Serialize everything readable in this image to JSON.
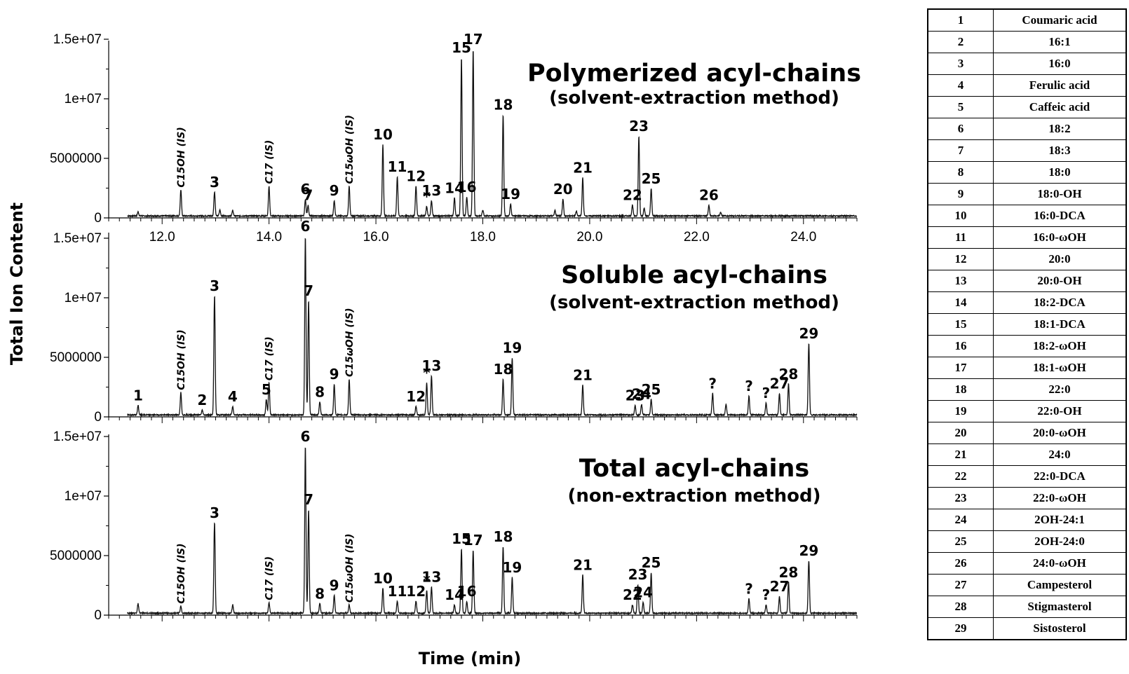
{
  "chart_data": {
    "type": "line",
    "ylabel": "Total Ion Content",
    "xlabel": "Time (min)",
    "xlim": [
      11.0,
      25.0
    ],
    "ylim": [
      0,
      15000000
    ],
    "x_ticks": [
      "12.0",
      "14.0",
      "16.0",
      "18.0",
      "20.0",
      "22.0",
      "24.0"
    ],
    "y_ticks": [
      "0",
      "5000000",
      "1e+07",
      "1.5e+07"
    ],
    "panels": [
      {
        "title": "Polymerized acyl-chains",
        "subtitle": "(solvent-extraction method)",
        "peaks": [
          {
            "x": 11.55,
            "y": 350000
          },
          {
            "x": 12.35,
            "y": 2200000,
            "label": "C15OH (IS)",
            "is": true
          },
          {
            "x": 12.98,
            "y": 2000000,
            "label": "3"
          },
          {
            "x": 13.08,
            "y": 500000
          },
          {
            "x": 13.32,
            "y": 450000
          },
          {
            "x": 14.0,
            "y": 2500000,
            "label": "C17 (IS)",
            "is": true
          },
          {
            "x": 14.68,
            "y": 1400000,
            "label": "6"
          },
          {
            "x": 14.73,
            "y": 900000,
            "label": "7"
          },
          {
            "x": 15.22,
            "y": 1300000,
            "label": "9"
          },
          {
            "x": 15.5,
            "y": 2500000,
            "label": "C15ωOH (IS)",
            "is": true
          },
          {
            "x": 16.13,
            "y": 6000000,
            "label": "10"
          },
          {
            "x": 16.4,
            "y": 3300000,
            "label": "11"
          },
          {
            "x": 16.75,
            "y": 2500000,
            "label": "12"
          },
          {
            "x": 16.95,
            "y": 800000,
            "label": "*"
          },
          {
            "x": 17.04,
            "y": 1300000,
            "label": "13"
          },
          {
            "x": 17.47,
            "y": 1500000,
            "label": "14"
          },
          {
            "x": 17.6,
            "y": 13300000,
            "label": "15"
          },
          {
            "x": 17.7,
            "y": 1600000,
            "label": "16"
          },
          {
            "x": 17.82,
            "y": 14000000,
            "label": "17"
          },
          {
            "x": 18.0,
            "y": 500000
          },
          {
            "x": 18.38,
            "y": 8500000,
            "label": "18"
          },
          {
            "x": 18.52,
            "y": 1000000,
            "label": "19"
          },
          {
            "x": 19.35,
            "y": 450000
          },
          {
            "x": 19.5,
            "y": 1400000,
            "label": "20"
          },
          {
            "x": 19.75,
            "y": 400000
          },
          {
            "x": 19.87,
            "y": 3200000,
            "label": "21"
          },
          {
            "x": 20.8,
            "y": 900000,
            "label": "22"
          },
          {
            "x": 20.92,
            "y": 6700000,
            "label": "23"
          },
          {
            "x": 21.02,
            "y": 700000
          },
          {
            "x": 21.15,
            "y": 2300000,
            "label": "25"
          },
          {
            "x": 22.23,
            "y": 900000,
            "label": "26"
          },
          {
            "x": 22.45,
            "y": 300000
          }
        ]
      },
      {
        "title": "Soluble acyl-chains",
        "subtitle": "(solvent-extraction method)",
        "peaks": [
          {
            "x": 11.55,
            "y": 800000,
            "label": "1"
          },
          {
            "x": 12.35,
            "y": 1900000,
            "label": "C15OH (IS)",
            "is": true
          },
          {
            "x": 12.75,
            "y": 400000,
            "label": "2"
          },
          {
            "x": 12.98,
            "y": 10000000,
            "label": "3"
          },
          {
            "x": 13.32,
            "y": 700000,
            "label": "4"
          },
          {
            "x": 13.95,
            "y": 1300000,
            "label": "5"
          },
          {
            "x": 14.0,
            "y": 2700000,
            "label": "C17 (IS)",
            "is": true
          },
          {
            "x": 14.68,
            "y": 15000000,
            "label": "6"
          },
          {
            "x": 14.74,
            "y": 9600000,
            "label": "7"
          },
          {
            "x": 14.95,
            "y": 1100000,
            "label": "8"
          },
          {
            "x": 15.22,
            "y": 2600000,
            "label": "9"
          },
          {
            "x": 15.5,
            "y": 3000000,
            "label": "C15ωOH (IS)",
            "is": true
          },
          {
            "x": 16.75,
            "y": 700000,
            "label": "12"
          },
          {
            "x": 16.95,
            "y": 2700000,
            "label": "*"
          },
          {
            "x": 17.04,
            "y": 3300000,
            "label": "13"
          },
          {
            "x": 18.38,
            "y": 3000000,
            "label": "18"
          },
          {
            "x": 18.55,
            "y": 4800000,
            "label": "19"
          },
          {
            "x": 19.87,
            "y": 2500000,
            "label": "21"
          },
          {
            "x": 20.85,
            "y": 800000,
            "label": "23"
          },
          {
            "x": 20.97,
            "y": 900000,
            "label": "24"
          },
          {
            "x": 21.15,
            "y": 1300000,
            "label": "25"
          },
          {
            "x": 22.3,
            "y": 1800000,
            "label": "?"
          },
          {
            "x": 22.55,
            "y": 900000
          },
          {
            "x": 22.98,
            "y": 1600000,
            "label": "?"
          },
          {
            "x": 23.3,
            "y": 1000000,
            "label": "?"
          },
          {
            "x": 23.55,
            "y": 1800000,
            "label": "27"
          },
          {
            "x": 23.72,
            "y": 2600000,
            "label": "28"
          },
          {
            "x": 24.1,
            "y": 6000000,
            "label": "29"
          }
        ]
      },
      {
        "title": "Total acyl-chains",
        "subtitle": "(non-extraction method)",
        "peaks": [
          {
            "x": 11.55,
            "y": 800000
          },
          {
            "x": 12.35,
            "y": 600000,
            "label": "C15OH (IS)",
            "is": true
          },
          {
            "x": 12.98,
            "y": 7600000,
            "label": "3"
          },
          {
            "x": 13.32,
            "y": 700000
          },
          {
            "x": 14.0,
            "y": 900000,
            "label": "C17 (IS)",
            "is": true
          },
          {
            "x": 14.68,
            "y": 14000000,
            "label": "6"
          },
          {
            "x": 14.74,
            "y": 8700000,
            "label": "7"
          },
          {
            "x": 14.95,
            "y": 800000,
            "label": "8"
          },
          {
            "x": 15.22,
            "y": 1500000,
            "label": "9"
          },
          {
            "x": 15.5,
            "y": 700000,
            "label": "C15ωOH (IS)",
            "is": true
          },
          {
            "x": 16.13,
            "y": 2100000,
            "label": "10"
          },
          {
            "x": 16.4,
            "y": 1000000,
            "label": "11"
          },
          {
            "x": 16.75,
            "y": 1000000,
            "label": "12"
          },
          {
            "x": 16.95,
            "y": 1900000,
            "label": "*"
          },
          {
            "x": 17.04,
            "y": 2200000,
            "label": "13"
          },
          {
            "x": 17.47,
            "y": 700000,
            "label": "14"
          },
          {
            "x": 17.6,
            "y": 5400000,
            "label": "15"
          },
          {
            "x": 17.7,
            "y": 1000000,
            "label": "16"
          },
          {
            "x": 17.82,
            "y": 5300000,
            "label": "17"
          },
          {
            "x": 18.38,
            "y": 5600000,
            "label": "18"
          },
          {
            "x": 18.55,
            "y": 3000000,
            "label": "19"
          },
          {
            "x": 19.87,
            "y": 3200000,
            "label": "21"
          },
          {
            "x": 20.8,
            "y": 700000,
            "label": "22"
          },
          {
            "x": 20.9,
            "y": 2400000,
            "label": "23"
          },
          {
            "x": 21.0,
            "y": 900000,
            "label": "24"
          },
          {
            "x": 21.15,
            "y": 3400000,
            "label": "25"
          },
          {
            "x": 22.98,
            "y": 1200000,
            "label": "?"
          },
          {
            "x": 23.3,
            "y": 700000,
            "label": "?"
          },
          {
            "x": 23.55,
            "y": 1400000,
            "label": "27"
          },
          {
            "x": 23.72,
            "y": 2600000,
            "label": "28"
          },
          {
            "x": 24.1,
            "y": 4400000,
            "label": "29"
          }
        ]
      }
    ],
    "legend_table": [
      [
        "1",
        "Coumaric acid"
      ],
      [
        "2",
        "16:1"
      ],
      [
        "3",
        "16:0"
      ],
      [
        "4",
        "Ferulic acid"
      ],
      [
        "5",
        "Caffeic acid"
      ],
      [
        "6",
        "18:2"
      ],
      [
        "7",
        "18:3"
      ],
      [
        "8",
        "18:0"
      ],
      [
        "9",
        "18:0-OH"
      ],
      [
        "10",
        "16:0-DCA"
      ],
      [
        "11",
        "16:0-ωOH"
      ],
      [
        "12",
        "20:0"
      ],
      [
        "13",
        "20:0-OH"
      ],
      [
        "14",
        "18:2-DCA"
      ],
      [
        "15",
        "18:1-DCA"
      ],
      [
        "16",
        "18:2-ωOH"
      ],
      [
        "17",
        "18:1-ωOH"
      ],
      [
        "18",
        "22:0"
      ],
      [
        "19",
        "22:0-OH"
      ],
      [
        "20",
        "20:0-ωOH"
      ],
      [
        "21",
        "24:0"
      ],
      [
        "22",
        "22:0-DCA"
      ],
      [
        "23",
        "22:0-ωOH"
      ],
      [
        "24",
        "2OH-24:1"
      ],
      [
        "25",
        "2OH-24:0"
      ],
      [
        "26",
        "24:0-ωOH"
      ],
      [
        "27",
        "Campesterol"
      ],
      [
        "28",
        "Stigmasterol"
      ],
      [
        "29",
        "Sistosterol"
      ]
    ]
  }
}
